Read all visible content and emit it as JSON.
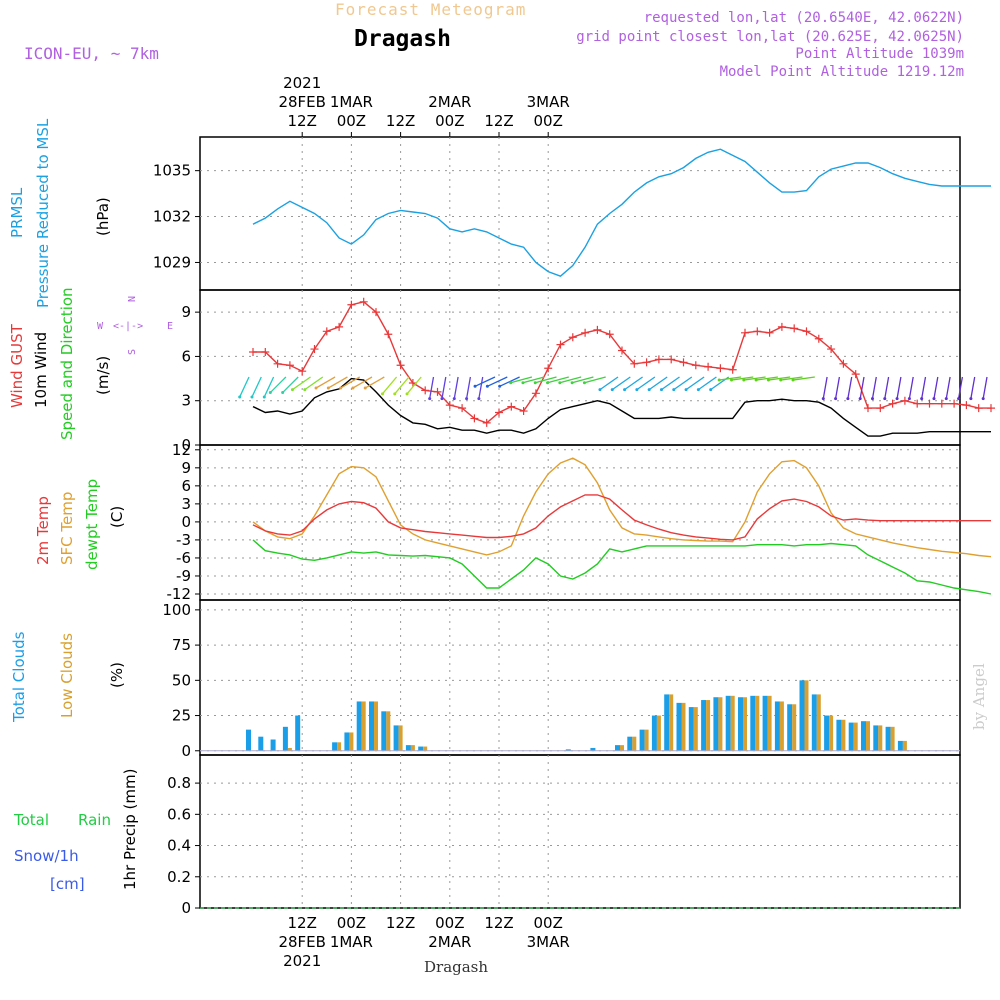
{
  "header": {
    "super_title": "Forecast Meteogram",
    "location": "Dragash",
    "model": "ICON-EU, ~ 7km",
    "requested": "requested lon,lat (20.6540E, 42.0622N)",
    "grid_point": "grid point closest lon,lat (20.625E, 42.0625N)",
    "point_alt": "Point Altitude 1039m",
    "model_alt": "Model Point Altitude 1219.12m",
    "credit": "by Angel",
    "footer": "Dragash"
  },
  "time_axis": {
    "top": [
      {
        "line1": "2021",
        "line2": "28FEB",
        "line3": "12Z"
      },
      {
        "line1": "",
        "line2": "1MAR",
        "line3": "00Z"
      },
      {
        "line1": "",
        "line2": "",
        "line3": "12Z"
      },
      {
        "line1": "",
        "line2": "2MAR",
        "line3": "00Z"
      },
      {
        "line1": "",
        "line2": "",
        "line3": "12Z"
      },
      {
        "line1": "",
        "line2": "3MAR",
        "line3": "00Z"
      }
    ],
    "bottom": [
      {
        "line1": "12Z",
        "line2": "28FEB",
        "line3": "2021"
      },
      {
        "line1": "00Z",
        "line2": "1MAR",
        "line3": ""
      },
      {
        "line1": "12Z",
        "line2": "",
        "line3": ""
      },
      {
        "line1": "00Z",
        "line2": "2MAR",
        "line3": ""
      },
      {
        "line1": "12Z",
        "line2": "",
        "line3": ""
      },
      {
        "line1": "00Z",
        "line2": "3MAR",
        "line3": ""
      }
    ]
  },
  "labels": {
    "p1": {
      "a": "PRMSL",
      "b": "Pressure Reduced to MSL",
      "unit": "(hPa)"
    },
    "p2": {
      "a": "Wind GUST",
      "b": "10m Wind",
      "c": "Speed and Direction",
      "unit": "(m/s)",
      "compass_n": "N",
      "compass_s": "S",
      "compass_w": "W",
      "compass_e": "E",
      "compass_mid": "<-|->"
    },
    "p3": {
      "a": "2m Temp",
      "b": "SFC Temp",
      "c": "dewpt Temp",
      "unit": "(C)"
    },
    "p4": {
      "a": "Total Clouds",
      "b": "Low Clouds",
      "unit": "(%)"
    },
    "p5": {
      "a": "Total",
      "a2": "Rain",
      "b": "Snow/1h",
      "c": "[cm]",
      "unit": "1hr Precip (mm)"
    }
  },
  "colors": {
    "pressure": "#1ba1e2",
    "gust": "#e8393a",
    "wind": "#000000",
    "t2m": "#e8393a",
    "sfc": "#e0a030",
    "dew": "#22cc22",
    "total_cloud": "#1a9ee8",
    "low_cloud": "#d8a030",
    "purple": "#b060e0",
    "title_orange": "#f0c890",
    "precip_total": "#22cc44",
    "snow": "#3a5ae8"
  },
  "chart_data": [
    {
      "type": "line",
      "name": "pressure",
      "yticks": [
        1029,
        1032,
        1035
      ],
      "ylim": [
        1027.2,
        1037.2
      ],
      "x": [
        0,
        3,
        6,
        9,
        12,
        15,
        18,
        21,
        24,
        27,
        30,
        33,
        36,
        39,
        42,
        45,
        48,
        51,
        54,
        57,
        60,
        63,
        66,
        69,
        72,
        75,
        78,
        81,
        84,
        87,
        90,
        93,
        96,
        99,
        102,
        105,
        108,
        111,
        114,
        117,
        120,
        123,
        126,
        129,
        132,
        135,
        138,
        141,
        144,
        147,
        150,
        153,
        156,
        159,
        162,
        165,
        168,
        171,
        174,
        177,
        180
      ],
      "series": [
        {
          "values": [
            1031.5,
            1031.9,
            1032.5,
            1033.0,
            1032.6,
            1032.2,
            1031.6,
            1030.6,
            1030.2,
            1030.8,
            1031.8,
            1032.2,
            1032.4,
            1032.3,
            1032.2,
            1031.9,
            1031.2,
            1031.0,
            1031.2,
            1031.0,
            1030.6,
            1030.2,
            1030.0,
            1029.0,
            1028.4,
            1028.1,
            1028.8,
            1030.0,
            1031.5,
            1032.2,
            1032.8,
            1033.6,
            1034.2,
            1034.6,
            1034.8,
            1035.2,
            1035.8,
            1036.2,
            1036.4,
            1036.0,
            1035.6,
            1034.9,
            1034.2,
            1033.6,
            1033.6,
            1033.7,
            1034.6,
            1035.1,
            1035.3,
            1035.5,
            1035.5,
            1035.2,
            1034.8,
            1034.5,
            1034.3,
            1034.1,
            1034.0,
            1034.0,
            1034.0,
            1034.0,
            1034.0
          ]
        }
      ]
    },
    {
      "type": "line",
      "name": "wind",
      "yticks": [
        0,
        3,
        6,
        9
      ],
      "ylim": [
        0,
        10.5
      ],
      "x": [
        0,
        3,
        6,
        9,
        12,
        15,
        18,
        21,
        24,
        27,
        30,
        33,
        36,
        39,
        42,
        45,
        48,
        51,
        54,
        57,
        60,
        63,
        66,
        69,
        72,
        75,
        78,
        81,
        84,
        87,
        90,
        93,
        96,
        99,
        102,
        105,
        108,
        111,
        114,
        117,
        120,
        123,
        126,
        129,
        132,
        135,
        138,
        141,
        144,
        147,
        150,
        153,
        156,
        159,
        162,
        165,
        168,
        171,
        174,
        177,
        180
      ],
      "series": [
        {
          "key": "gust",
          "values": [
            6.3,
            6.3,
            5.5,
            5.4,
            5.0,
            6.5,
            7.7,
            8.0,
            9.5,
            9.7,
            9.0,
            7.5,
            5.4,
            4.2,
            3.7,
            3.6,
            2.7,
            2.5,
            1.8,
            1.5,
            2.2,
            2.6,
            2.3,
            3.5,
            5.2,
            6.8,
            7.3,
            7.6,
            7.8,
            7.5,
            6.4,
            5.5,
            5.6,
            5.8,
            5.8,
            5.6,
            5.4,
            5.3,
            5.2,
            5.1,
            7.6,
            7.7,
            7.6,
            8.0,
            7.9,
            7.7,
            7.2,
            6.5,
            5.5,
            4.8,
            2.5,
            2.5,
            2.8,
            3.0,
            2.8,
            2.8,
            2.8,
            2.8,
            2.7,
            2.5,
            2.5
          ]
        },
        {
          "key": "wind",
          "values": [
            2.6,
            2.2,
            2.3,
            2.1,
            2.3,
            3.2,
            3.6,
            3.8,
            4.5,
            4.4,
            3.6,
            2.7,
            2.0,
            1.5,
            1.4,
            1.1,
            1.2,
            1.0,
            1.0,
            0.8,
            1.0,
            1.0,
            0.8,
            1.1,
            1.8,
            2.4,
            2.6,
            2.8,
            3.0,
            2.8,
            2.3,
            1.8,
            1.8,
            1.8,
            1.9,
            1.8,
            1.8,
            1.8,
            1.8,
            1.8,
            2.9,
            3.0,
            3.0,
            3.1,
            3.0,
            3.0,
            2.9,
            2.5,
            1.8,
            1.2,
            0.6,
            0.6,
            0.8,
            0.8,
            0.8,
            0.9,
            0.9,
            0.9,
            0.9,
            0.9,
            0.9
          ]
        }
      ]
    },
    {
      "type": "line",
      "name": "temperature",
      "yticks": [
        -12,
        -9,
        -6,
        -3,
        0,
        3,
        6,
        9,
        12
      ],
      "ylim": [
        -13,
        12.8
      ],
      "x": [
        0,
        3,
        6,
        9,
        12,
        15,
        18,
        21,
        24,
        27,
        30,
        33,
        36,
        39,
        42,
        45,
        48,
        51,
        54,
        57,
        60,
        63,
        66,
        69,
        72,
        75,
        78,
        81,
        84,
        87,
        90,
        93,
        96,
        99,
        102,
        105,
        108,
        111,
        114,
        117,
        120,
        123,
        126,
        129,
        132,
        135,
        138,
        141,
        144,
        147,
        150,
        153,
        156,
        159,
        162,
        165,
        168,
        171,
        174,
        177,
        180
      ],
      "series": [
        {
          "key": "t2m",
          "values": [
            -0.5,
            -1.5,
            -2.0,
            -2.2,
            -1.5,
            0.5,
            2.0,
            3.0,
            3.4,
            3.2,
            2.3,
            0.0,
            -1.0,
            -1.3,
            -1.6,
            -1.8,
            -2.0,
            -2.2,
            -2.4,
            -2.6,
            -2.6,
            -2.4,
            -2.0,
            -1.0,
            1.0,
            2.5,
            3.5,
            4.5,
            4.5,
            3.8,
            2.0,
            0.3,
            -0.5,
            -1.2,
            -1.8,
            -2.2,
            -2.5,
            -2.7,
            -2.9,
            -3.0,
            -2.5,
            0.5,
            2.2,
            3.5,
            3.8,
            3.4,
            2.5,
            1.0,
            0.3,
            0.5,
            0.3,
            0.2,
            0.2,
            0.2,
            0.2,
            0.2,
            0.2,
            0.2,
            0.2,
            0.2,
            0.2
          ]
        },
        {
          "key": "sfc",
          "values": [
            0.0,
            -1.5,
            -2.5,
            -2.8,
            -2.0,
            1.0,
            4.5,
            8.0,
            9.2,
            9.0,
            7.5,
            3.5,
            -0.5,
            -2.0,
            -3.0,
            -3.5,
            -4.0,
            -4.5,
            -5.0,
            -5.5,
            -5.0,
            -4.0,
            1.0,
            5.0,
            8.0,
            9.8,
            10.6,
            9.5,
            6.5,
            2.0,
            -1.0,
            -2.0,
            -2.2,
            -2.5,
            -2.8,
            -3.0,
            -3.1,
            -3.2,
            -3.2,
            -3.3,
            0.0,
            5.0,
            8.0,
            10.0,
            10.2,
            9.0,
            6.0,
            1.5,
            -1.0,
            -2.0,
            -2.5,
            -3.0,
            -3.5,
            -3.9,
            -4.3,
            -4.6,
            -4.9,
            -5.1,
            -5.3,
            -5.6,
            -5.8
          ]
        },
        {
          "key": "dew",
          "values": [
            -3.0,
            -4.8,
            -5.2,
            -5.5,
            -6.2,
            -6.4,
            -6.0,
            -5.5,
            -5.0,
            -5.2,
            -5.0,
            -5.5,
            -5.6,
            -5.7,
            -5.6,
            -5.8,
            -6.0,
            -7.0,
            -9.0,
            -11.0,
            -11.0,
            -9.5,
            -8.0,
            -6.0,
            -7.0,
            -9.0,
            -9.5,
            -8.5,
            -7.0,
            -4.5,
            -5.0,
            -4.5,
            -4.0,
            -4.0,
            -4.0,
            -4.0,
            -4.0,
            -4.0,
            -4.0,
            -4.0,
            -4.0,
            -3.8,
            -3.8,
            -3.8,
            -4.0,
            -3.8,
            -3.8,
            -3.6,
            -3.8,
            -4.0,
            -5.5,
            -6.5,
            -7.5,
            -8.5,
            -9.8,
            -10.0,
            -10.5,
            -11.0,
            -11.3,
            -11.6,
            -12.0
          ]
        }
      ]
    },
    {
      "type": "bar",
      "name": "clouds",
      "yticks": [
        0,
        25,
        50,
        75,
        100
      ],
      "ylim": [
        -3,
        107
      ],
      "x": [
        0,
        3,
        6,
        9,
        12,
        15,
        18,
        21,
        24,
        27,
        30,
        33,
        36,
        39,
        42,
        45,
        48,
        51,
        54,
        57,
        60,
        63,
        66,
        69,
        72,
        75,
        78,
        81,
        84,
        87,
        90,
        93,
        96,
        99,
        102,
        105,
        108,
        111,
        114,
        117,
        120,
        123,
        126,
        129,
        132,
        135,
        138,
        141,
        144,
        147,
        150,
        153,
        156,
        159,
        162,
        165,
        168,
        171,
        174,
        177,
        180
      ],
      "series": [
        {
          "key": "total",
          "values": [
            15,
            10,
            8,
            17,
            25,
            0,
            0,
            6,
            13,
            35,
            35,
            28,
            18,
            4,
            3,
            0,
            0,
            0,
            0,
            0,
            0,
            0,
            0,
            0,
            0,
            0,
            1,
            0,
            2,
            0,
            4,
            10,
            15,
            25,
            40,
            34,
            31,
            36,
            38,
            39,
            38,
            39,
            39,
            35,
            33,
            50,
            40,
            25,
            22,
            20,
            21,
            18,
            17,
            7,
            0,
            0,
            0,
            0,
            0,
            0,
            0
          ]
        },
        {
          "key": "low",
          "values": [
            0,
            0,
            0,
            2,
            0,
            0,
            0,
            6,
            13,
            35,
            35,
            28,
            18,
            4,
            3,
            0,
            0,
            0,
            0,
            0,
            0,
            0,
            0,
            0,
            0,
            0,
            0,
            0,
            0,
            0,
            4,
            10,
            15,
            25,
            40,
            34,
            31,
            36,
            38,
            39,
            38,
            39,
            39,
            35,
            33,
            50,
            40,
            25,
            22,
            20,
            21,
            18,
            17,
            7,
            0,
            0,
            0,
            0,
            0,
            0,
            0
          ]
        }
      ]
    },
    {
      "type": "bar",
      "name": "precipitation",
      "yticks": [
        0,
        0.2,
        0.4,
        0.6,
        0.8
      ],
      "ylim": [
        0,
        0.98
      ],
      "x": [
        0,
        180
      ],
      "series": [
        {
          "key": "total_rain",
          "values": [
            0,
            0
          ]
        }
      ]
    }
  ]
}
